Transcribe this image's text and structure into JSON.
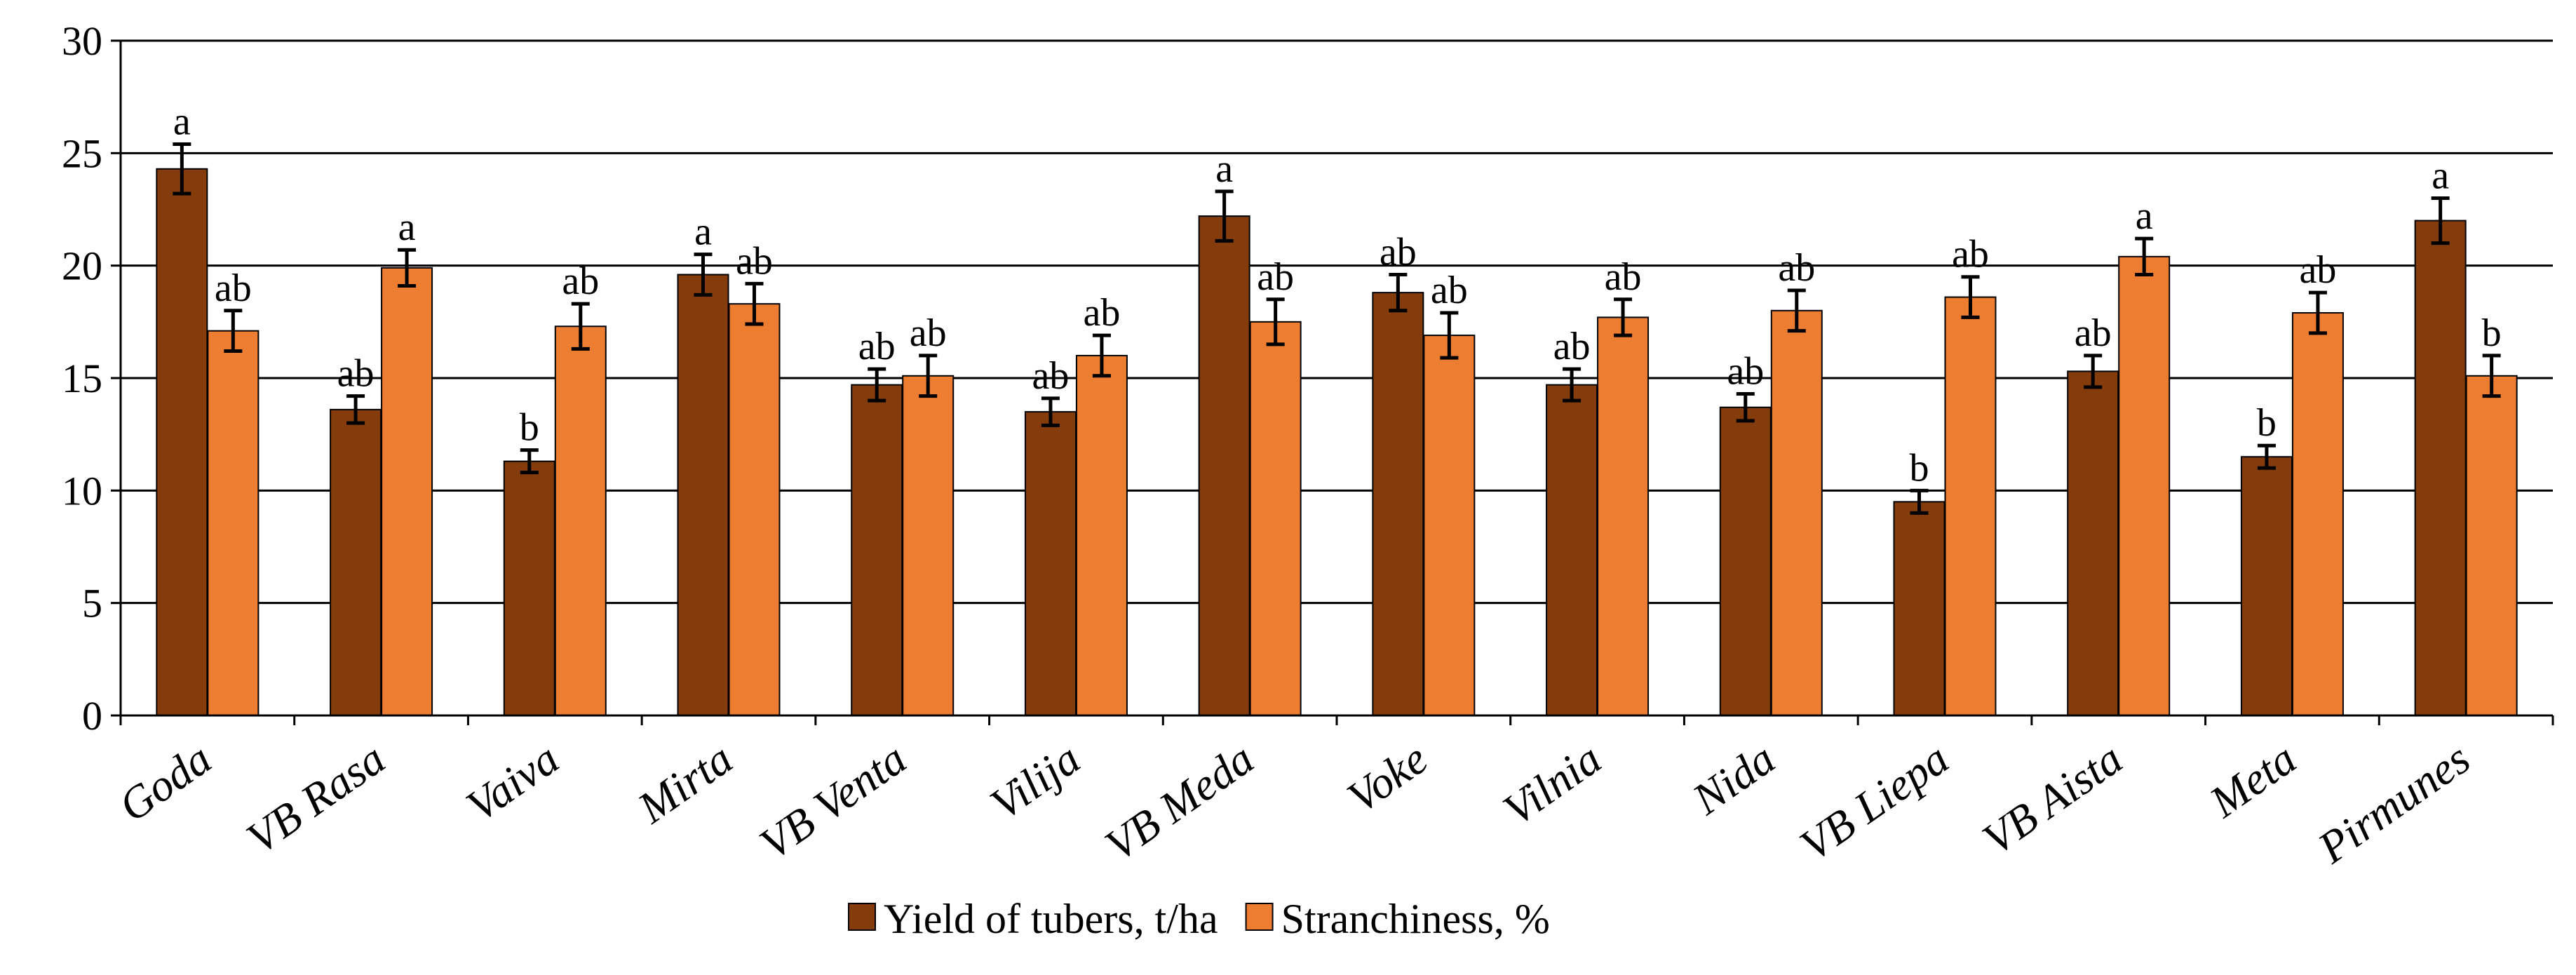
{
  "chart_data": {
    "type": "bar",
    "title": "",
    "xlabel": "",
    "ylabel": "",
    "ylim": [
      0,
      30
    ],
    "yticks": [
      0,
      5,
      10,
      15,
      20,
      25,
      30
    ],
    "grid": true,
    "legend_position": "bottom",
    "categories": [
      "Goda",
      "VB Rasa",
      "Vaiva",
      "Mirta",
      "VB Venta",
      "Vilija",
      "VB Meda",
      "Voke",
      "Vilnia",
      "Nida",
      "VB Liepa",
      "VB Aista",
      "Meta",
      "Pirmunes"
    ],
    "series": [
      {
        "name": "Yield of tubers, t/ha",
        "color": "#843c0c",
        "values": [
          24.3,
          13.6,
          11.3,
          19.6,
          14.7,
          13.5,
          22.2,
          18.8,
          14.7,
          13.7,
          9.5,
          15.3,
          11.5,
          22.0
        ],
        "errors": [
          1.1,
          0.6,
          0.5,
          0.9,
          0.7,
          0.6,
          1.1,
          0.8,
          0.7,
          0.6,
          0.5,
          0.7,
          0.5,
          1.0
        ],
        "labels": [
          "a",
          "ab",
          "b",
          "a",
          "ab",
          "ab",
          "a",
          "ab",
          "ab",
          "ab",
          "b",
          "ab",
          "b",
          "a"
        ]
      },
      {
        "name": "Stranchiness, %",
        "color": "#ed7d31",
        "values": [
          17.1,
          19.9,
          17.3,
          18.3,
          15.1,
          16.0,
          17.5,
          16.9,
          17.7,
          18.0,
          18.6,
          20.4,
          17.9,
          15.1
        ],
        "errors": [
          0.9,
          0.8,
          1.0,
          0.9,
          0.9,
          0.9,
          1.0,
          1.0,
          0.8,
          0.9,
          0.9,
          0.8,
          0.9,
          0.9
        ],
        "labels": [
          "ab",
          "a",
          "ab",
          "ab",
          "ab",
          "ab",
          "ab",
          "ab",
          "ab",
          "ab",
          "ab",
          "a",
          "ab",
          "b"
        ]
      }
    ]
  }
}
